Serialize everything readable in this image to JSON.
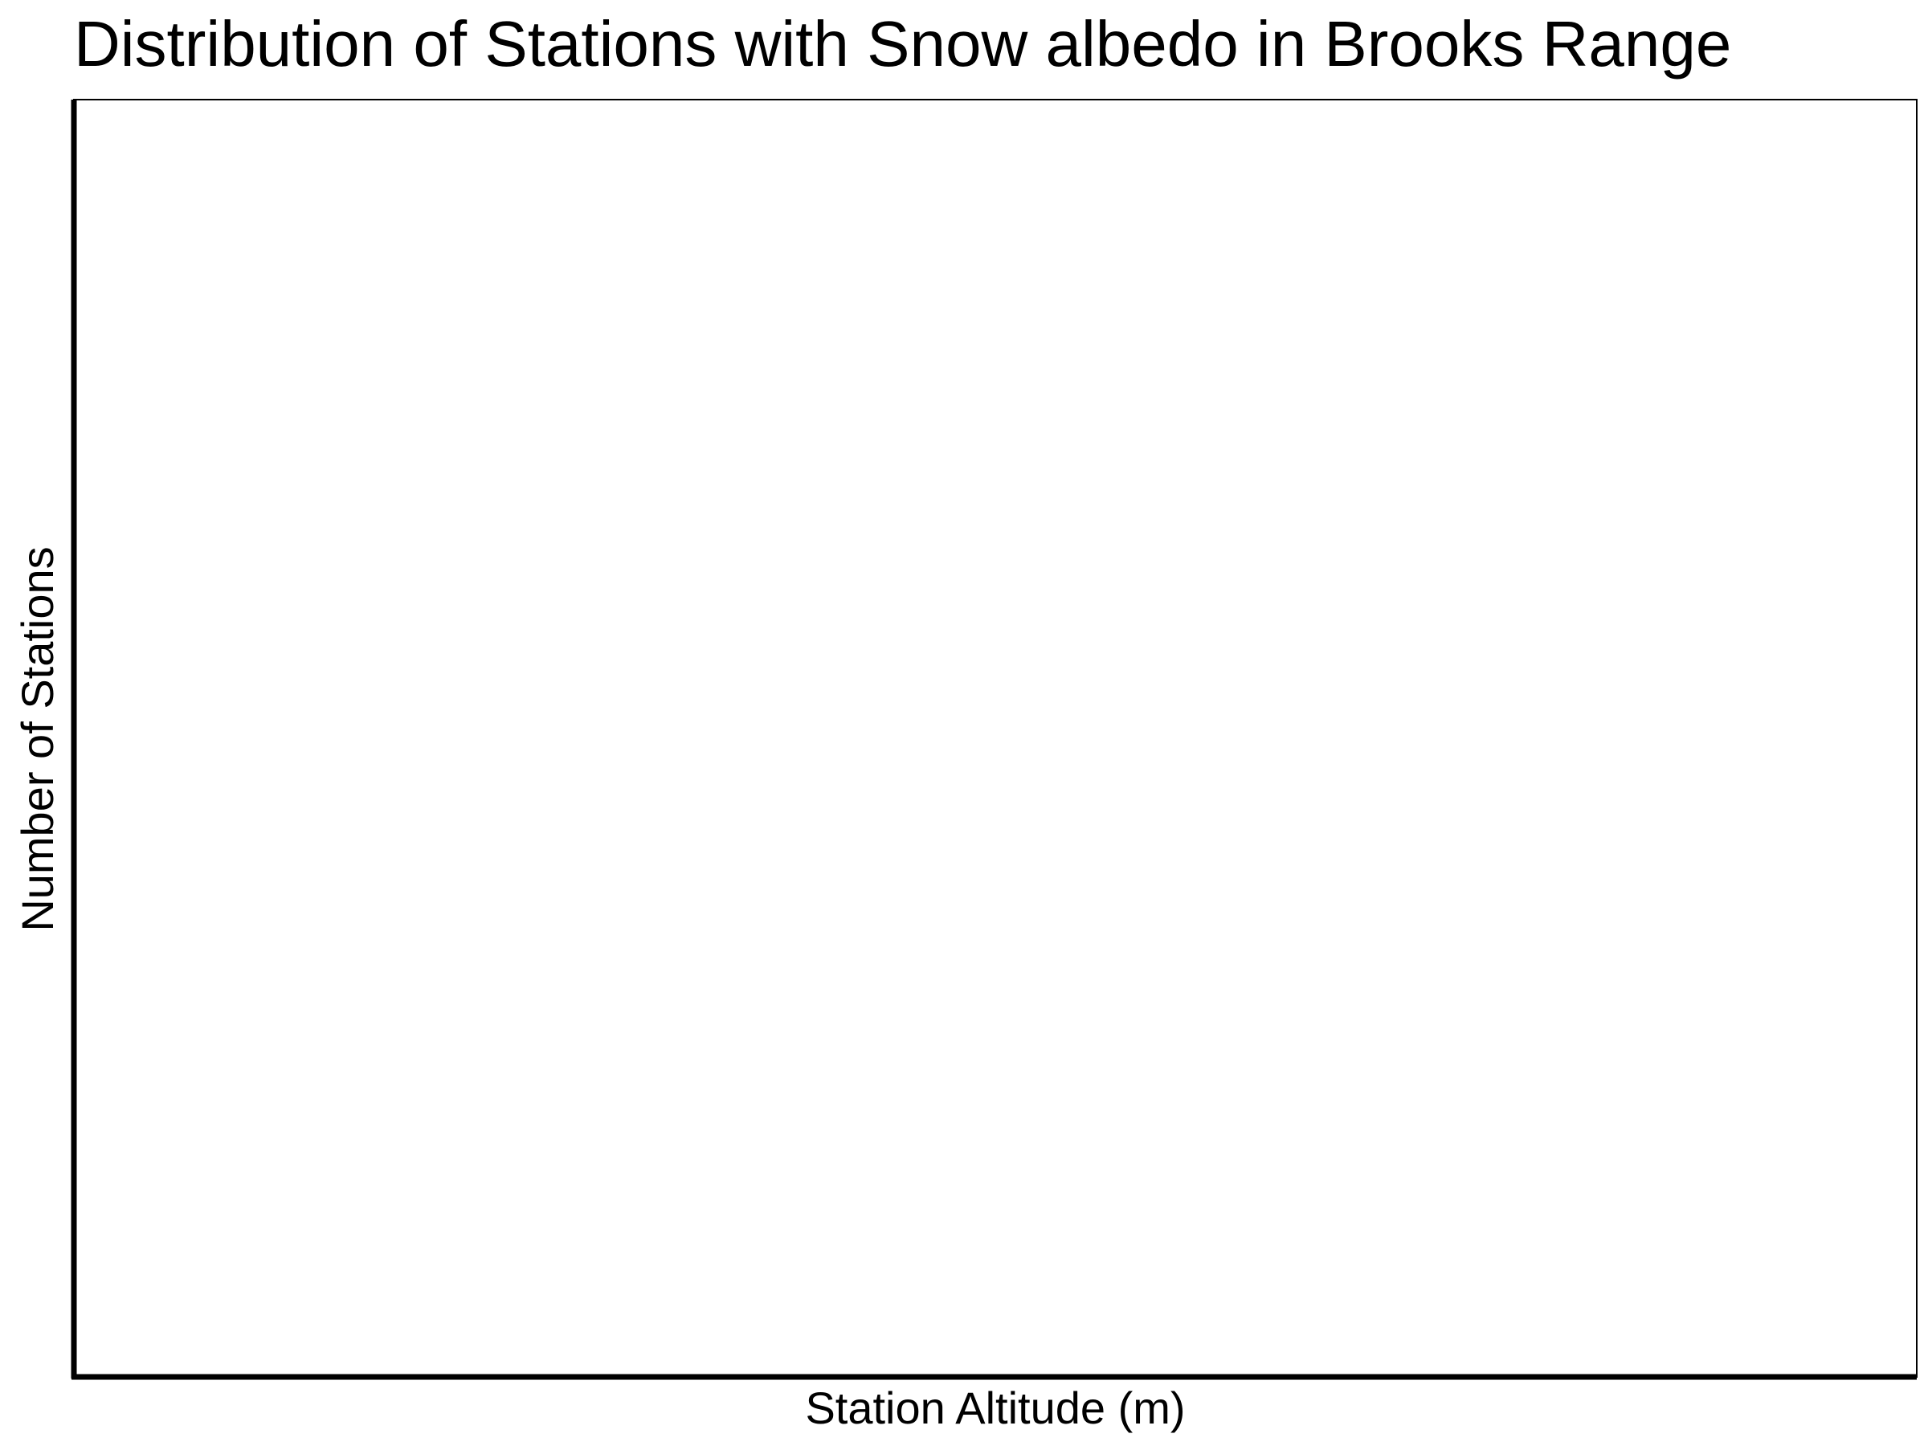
{
  "chart_data": {
    "type": "bar",
    "title": "Distribution of Stations with Snow albedo in Brooks Range",
    "xlabel": "Station Altitude (m)",
    "ylabel": "Number of Stations",
    "categories": [],
    "values": [],
    "grid": false,
    "legend": "none"
  },
  "colors": {
    "background": "#ffffff",
    "axis": "#000000",
    "text": "#000000"
  }
}
